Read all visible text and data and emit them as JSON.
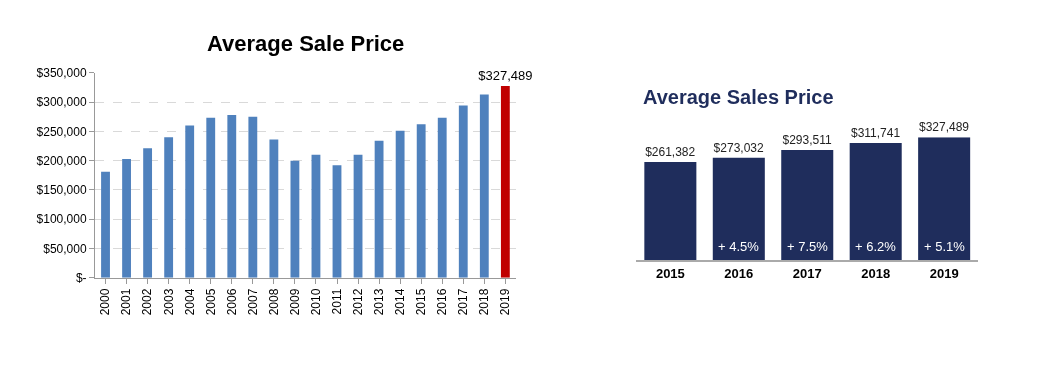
{
  "chart_data": [
    {
      "type": "bar",
      "title": "Average Sale Price",
      "categories": [
        "2000",
        "2001",
        "2002",
        "2003",
        "2004",
        "2005",
        "2006",
        "2007",
        "2008",
        "2009",
        "2010",
        "2011",
        "2012",
        "2013",
        "2014",
        "2015",
        "2016",
        "2017",
        "2018",
        "2019"
      ],
      "values": [
        181000,
        203000,
        221000,
        240000,
        260000,
        273000,
        278000,
        275000,
        236000,
        200000,
        210000,
        192000,
        210000,
        234000,
        251000,
        262000,
        273000,
        294000,
        313000,
        327489
      ],
      "colors": [
        "#4f81bd",
        "#4f81bd",
        "#4f81bd",
        "#4f81bd",
        "#4f81bd",
        "#4f81bd",
        "#4f81bd",
        "#4f81bd",
        "#4f81bd",
        "#4f81bd",
        "#4f81bd",
        "#4f81bd",
        "#4f81bd",
        "#4f81bd",
        "#4f81bd",
        "#4f81bd",
        "#4f81bd",
        "#4f81bd",
        "#4f81bd",
        "#c00000"
      ],
      "value_labels": [
        null,
        null,
        null,
        null,
        null,
        null,
        null,
        null,
        null,
        null,
        null,
        null,
        null,
        null,
        null,
        null,
        null,
        null,
        null,
        "$327,489"
      ],
      "ylim": [
        0,
        350000
      ],
      "yticks": [
        {
          "value": 0,
          "label": "$-"
        },
        {
          "value": 50000,
          "label": "$50,000"
        },
        {
          "value": 100000,
          "label": "$100,000"
        },
        {
          "value": 150000,
          "label": "$150,000"
        },
        {
          "value": 200000,
          "label": "$200,000"
        },
        {
          "value": 250000,
          "label": "$250,000"
        },
        {
          "value": 300000,
          "label": "$300,000"
        },
        {
          "value": 350000,
          "label": "$350,000"
        }
      ],
      "grid": "y"
    },
    {
      "type": "bar",
      "title": "Average Sales Price",
      "categories": [
        "2015",
        "2016",
        "2017",
        "2018",
        "2019"
      ],
      "values": [
        261382,
        273032,
        293511,
        311741,
        327489
      ],
      "color": "#1f2d5c",
      "value_labels": [
        "$261,382",
        "$273,032",
        "$293,511",
        "$311,741",
        "$327,489"
      ],
      "annotations": [
        "+ 4.5%",
        "+ 7.5%",
        "+ 6.2%",
        "+ 5.1%"
      ],
      "tick_labels": "x",
      "grid": false
    }
  ]
}
